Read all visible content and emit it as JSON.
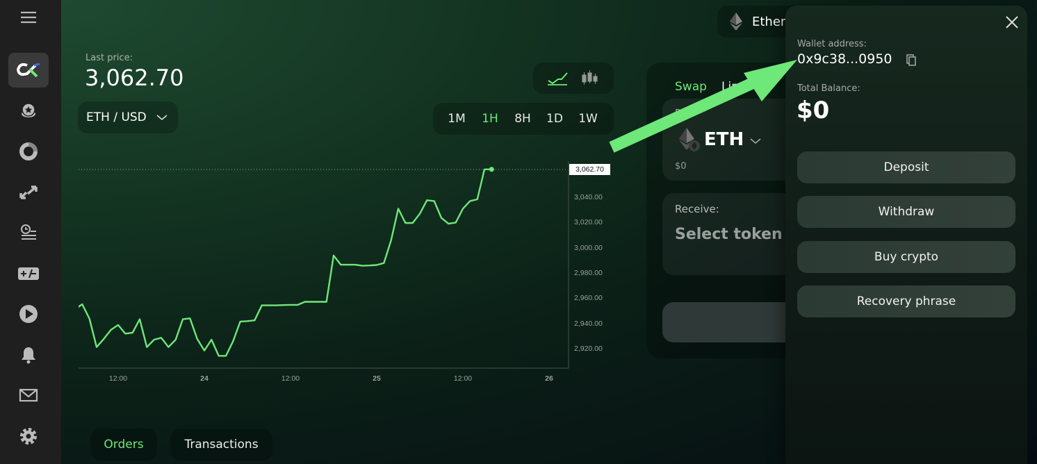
{
  "sidebar": {
    "items": [
      "menu-icon",
      "logo",
      "staking-icon",
      "portfolio-icon",
      "swap-arrows-icon",
      "history-icon",
      "plus-minus-icon",
      "play-icon",
      "bell-icon",
      "mail-icon",
      "gear-icon"
    ]
  },
  "price": {
    "label": "Last price:",
    "value": "3,062.70",
    "pair": "ETH / USD"
  },
  "timeframes": {
    "items": [
      "1M",
      "1H",
      "8H",
      "1D",
      "1W"
    ],
    "active": "1H"
  },
  "chart_type": {
    "options": [
      "line",
      "candles"
    ],
    "active": "line"
  },
  "network": {
    "label": "Ether"
  },
  "swap": {
    "tabs": [
      "Swap",
      "Limit"
    ],
    "buy_label": "Buy:",
    "buy_token": "ETH",
    "buy_value": "$0",
    "receive_label": "Receive:",
    "receive_placeholder": "Select token"
  },
  "wallet": {
    "address_label": "Wallet address:",
    "address": "0x9c38...0950",
    "balance_label": "Total Balance:",
    "balance": "$0",
    "buttons": [
      "Deposit",
      "Withdraw",
      "Buy crypto",
      "Recovery phrase"
    ]
  },
  "bottom_tabs": {
    "items": [
      "Orders",
      "Transactions"
    ],
    "active": "Orders"
  },
  "colors": {
    "accent": "#6ee879",
    "sidebar": "#1f1f1f"
  },
  "chart_data": {
    "type": "line",
    "title": "",
    "xlabel": "",
    "ylabel": "",
    "ylim": [
      2905,
      3070
    ],
    "xlim": [
      "23 06:30",
      "26 02:40"
    ],
    "grid": false,
    "y_ticks": [
      "2,920.00",
      "2,940.00",
      "2,960.00",
      "2,980.00",
      "3,000.00",
      "3,020.00",
      "3,040.00"
    ],
    "x_ticks": [
      {
        "label": "12:00",
        "at": "23 12:00",
        "bold": false
      },
      {
        "label": "24",
        "at": "24 00:00",
        "bold": true
      },
      {
        "label": "12:00",
        "at": "24 12:00",
        "bold": false
      },
      {
        "label": "25",
        "at": "25 00:00",
        "bold": true
      },
      {
        "label": "12:00",
        "at": "25 12:00",
        "bold": false
      },
      {
        "label": "26",
        "at": "26 00:00",
        "bold": true
      }
    ],
    "last_price_label": "3,062.70",
    "x": [
      "23 06:00",
      "23 07:00",
      "23 08:00",
      "23 09:00",
      "23 10:00",
      "23 11:00",
      "23 12:00",
      "23 13:00",
      "23 14:00",
      "23 15:00",
      "23 16:00",
      "23 17:00",
      "23 18:00",
      "23 19:00",
      "23 20:00",
      "23 21:00",
      "23 22:00",
      "23 23:00",
      "24 00:00",
      "24 01:00",
      "24 02:00",
      "24 03:00",
      "24 04:00",
      "24 05:00",
      "24 06:00",
      "24 07:00",
      "24 08:00",
      "24 09:00",
      "24 10:00",
      "24 11:00",
      "24 12:00",
      "24 13:00",
      "24 14:00",
      "24 15:00",
      "24 16:00",
      "24 17:00",
      "24 18:00",
      "24 19:00",
      "24 20:00",
      "24 21:00",
      "24 22:00",
      "24 23:00",
      "25 00:00",
      "25 01:00",
      "25 02:00",
      "25 03:00",
      "25 04:00",
      "25 05:00",
      "25 06:00",
      "25 07:00",
      "25 08:00",
      "25 09:00",
      "25 10:00",
      "25 11:00",
      "25 12:00",
      "25 13:00",
      "25 14:00",
      "25 15:00",
      "25 16:00"
    ],
    "y": [
      2951.8,
      2955.8,
      2944.3,
      2921.8,
      2928.3,
      2935.6,
      2939.3,
      2932.5,
      2933.2,
      2943.9,
      2921.8,
      2927.7,
      2929.2,
      2921.8,
      2927.7,
      2943.9,
      2944.6,
      2928.3,
      2919.1,
      2927.7,
      2914.9,
      2914.9,
      2926.4,
      2942.1,
      2942.4,
      2943.0,
      2954.9,
      2954.9,
      2954.9,
      2955.1,
      2955.3,
      2955.3,
      2957.7,
      2957.7,
      2957.7,
      2957.7,
      2994.4,
      2987.1,
      2987.1,
      2987.1,
      2986.3,
      2986.5,
      2986.9,
      2988.4,
      3006.4,
      3031.5,
      3020.2,
      3020.2,
      3027.5,
      3038.2,
      3037.6,
      3024.2,
      3019.6,
      3020.5,
      3031.5,
      3037.6,
      3038.9,
      3062.7,
      3062.7
    ]
  }
}
